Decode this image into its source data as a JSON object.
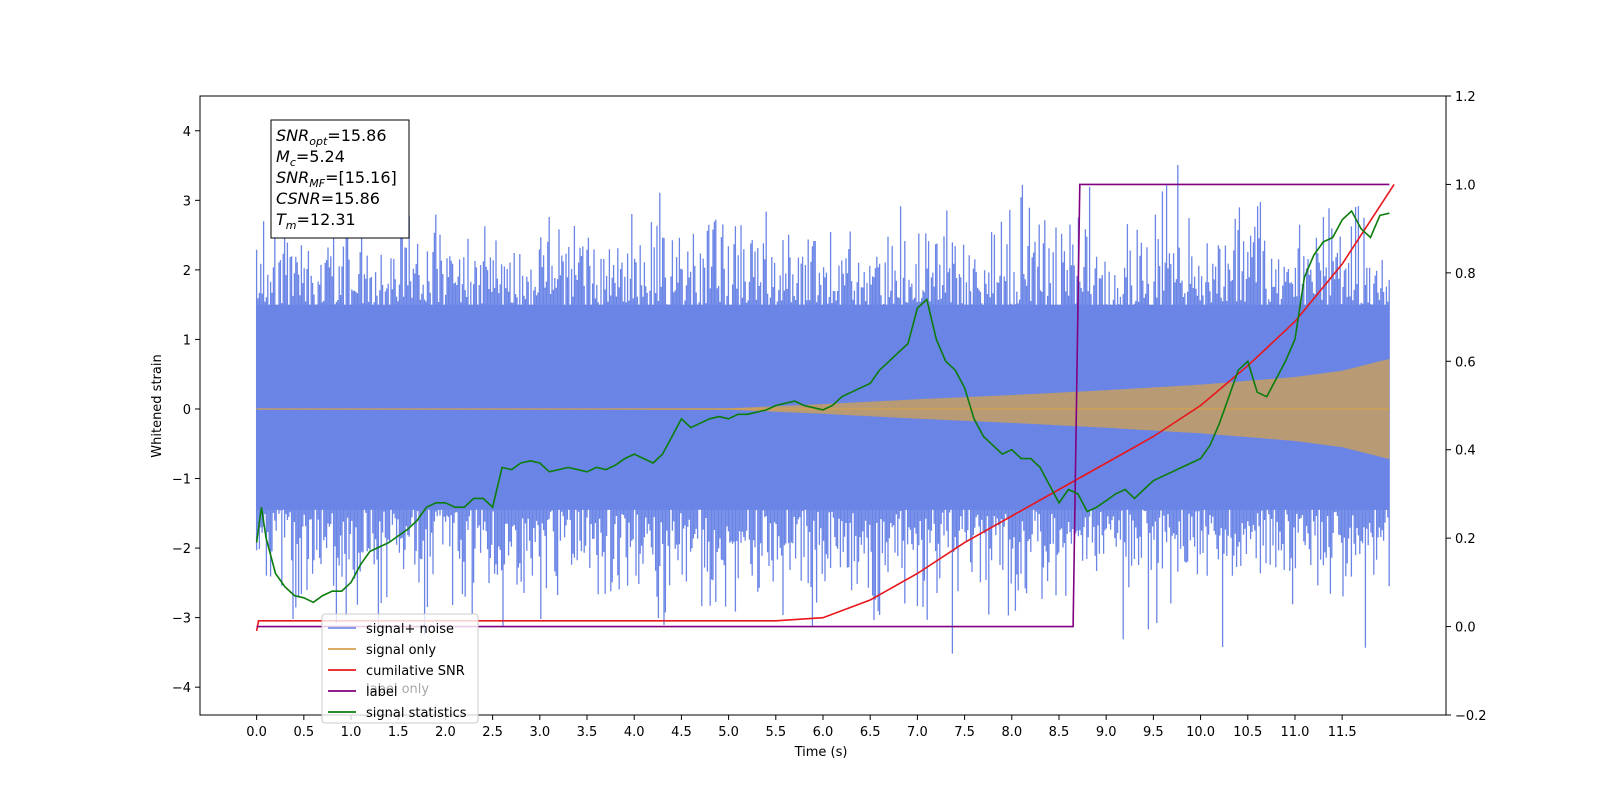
{
  "chart_data": {
    "type": "line",
    "xlabel": "Time (s)",
    "ylabel": "Whitened strain",
    "xlim": [
      -0.6,
      12.6
    ],
    "ylim": [
      -4.4,
      4.5
    ],
    "y2lim": [
      -0.2,
      1.2
    ],
    "xticks": [
      "0.0",
      "0.5",
      "1.0",
      "1.5",
      "2.0",
      "2.5",
      "3.0",
      "3.5",
      "4.0",
      "4.5",
      "5.0",
      "5.5",
      "6.0",
      "6.5",
      "7.0",
      "7.5",
      "8.0",
      "8.5",
      "9.0",
      "9.5",
      "10.0",
      "10.5",
      "11.0",
      "11.5"
    ],
    "yticks": [
      "−4",
      "−3",
      "−2",
      "−1",
      "0",
      "1",
      "2",
      "3",
      "4"
    ],
    "y2ticks": [
      "−0.2",
      "0.0",
      "0.2",
      "0.4",
      "0.6",
      "0.8",
      "1.0",
      "1.2"
    ],
    "grid": false,
    "legend_position": "lower-left",
    "colors": {
      "noise": "#6a85e6",
      "signal": "#d4a14f",
      "snr": "#e8161b",
      "label": "#800080",
      "stat": "#0b7d0b",
      "label_only": "#b0a0b0"
    },
    "legend": [
      {
        "key": "noise",
        "label": "signal+ noise"
      },
      {
        "key": "signal",
        "label": "signal only"
      },
      {
        "key": "snr",
        "label": "cumilative SNR"
      },
      {
        "key": "label",
        "label": "label"
      },
      {
        "key": "stat",
        "label": "signal statistics"
      }
    ],
    "hidden_legend_label": "label only",
    "info_box": [
      {
        "base": "SNR",
        "sub": "opt",
        "value": "=15.86"
      },
      {
        "base": "M",
        "sub": "c",
        "value": "=5.24"
      },
      {
        "base": "SNR",
        "sub": "MF",
        "value": "=[15.16]"
      },
      {
        "base": "CSNR",
        "sub": "",
        "value": "=15.86"
      },
      {
        "base": "T",
        "sub": "m",
        "value": "=12.31"
      }
    ],
    "noise_range": [
      0.0,
      12.0
    ],
    "signal_envelope": {
      "x": [
        0.0,
        5.0,
        6.0,
        7.0,
        8.0,
        9.0,
        10.0,
        11.0,
        11.5,
        12.0
      ],
      "amp": [
        0.0,
        0.01,
        0.07,
        0.14,
        0.2,
        0.27,
        0.35,
        0.46,
        0.55,
        0.72
      ]
    },
    "cumulative_snr": {
      "x": [
        0.0,
        0.02,
        5.5,
        6.0,
        6.5,
        7.0,
        7.5,
        8.0,
        8.5,
        9.0,
        9.5,
        10.0,
        10.5,
        11.0,
        11.5,
        12.05
      ],
      "y": [
        -0.01,
        0.013,
        0.013,
        0.02,
        0.06,
        0.12,
        0.19,
        0.25,
        0.31,
        0.37,
        0.43,
        0.5,
        0.59,
        0.69,
        0.82,
        1.0
      ]
    },
    "label_series": {
      "x": [
        0.0,
        8.65,
        8.72,
        12.0
      ],
      "y": [
        0.0,
        0.0,
        1.0,
        1.0
      ]
    },
    "signal_statistics": {
      "x": [
        0.0,
        0.05,
        0.1,
        0.2,
        0.3,
        0.4,
        0.5,
        0.6,
        0.7,
        0.8,
        0.9,
        1.0,
        1.1,
        1.2,
        1.3,
        1.4,
        1.5,
        1.6,
        1.7,
        1.8,
        1.9,
        2.0,
        2.1,
        2.2,
        2.3,
        2.4,
        2.5,
        2.6,
        2.7,
        2.8,
        2.9,
        3.0,
        3.1,
        3.2,
        3.3,
        3.4,
        3.5,
        3.6,
        3.7,
        3.8,
        3.9,
        4.0,
        4.1,
        4.2,
        4.3,
        4.4,
        4.5,
        4.6,
        4.7,
        4.8,
        4.9,
        5.0,
        5.1,
        5.2,
        5.3,
        5.4,
        5.5,
        5.6,
        5.7,
        5.8,
        5.9,
        6.0,
        6.1,
        6.2,
        6.3,
        6.4,
        6.5,
        6.6,
        6.7,
        6.8,
        6.9,
        7.0,
        7.1,
        7.2,
        7.3,
        7.4,
        7.5,
        7.6,
        7.7,
        7.8,
        7.9,
        8.0,
        8.1,
        8.2,
        8.3,
        8.4,
        8.5,
        8.6,
        8.7,
        8.8,
        8.9,
        9.0,
        9.1,
        9.2,
        9.3,
        9.4,
        9.5,
        9.6,
        9.7,
        9.8,
        9.9,
        10.0,
        10.1,
        10.2,
        10.3,
        10.4,
        10.5,
        10.6,
        10.7,
        10.8,
        10.9,
        11.0,
        11.1,
        11.2,
        11.3,
        11.4,
        11.5,
        11.6,
        11.7,
        11.8,
        11.9,
        12.0
      ],
      "y": [
        0.19,
        0.27,
        0.2,
        0.12,
        0.09,
        0.07,
        0.065,
        0.055,
        0.07,
        0.08,
        0.08,
        0.1,
        0.14,
        0.17,
        0.18,
        0.19,
        0.205,
        0.22,
        0.24,
        0.27,
        0.28,
        0.28,
        0.27,
        0.27,
        0.29,
        0.29,
        0.27,
        0.36,
        0.355,
        0.37,
        0.375,
        0.37,
        0.35,
        0.355,
        0.36,
        0.355,
        0.35,
        0.36,
        0.355,
        0.365,
        0.38,
        0.39,
        0.38,
        0.37,
        0.39,
        0.43,
        0.47,
        0.45,
        0.46,
        0.47,
        0.475,
        0.47,
        0.48,
        0.48,
        0.485,
        0.49,
        0.5,
        0.505,
        0.51,
        0.5,
        0.495,
        0.49,
        0.5,
        0.52,
        0.53,
        0.54,
        0.55,
        0.58,
        0.6,
        0.62,
        0.64,
        0.72,
        0.74,
        0.65,
        0.6,
        0.58,
        0.54,
        0.47,
        0.43,
        0.41,
        0.39,
        0.4,
        0.38,
        0.38,
        0.36,
        0.32,
        0.28,
        0.31,
        0.3,
        0.26,
        0.27,
        0.285,
        0.3,
        0.31,
        0.29,
        0.31,
        0.33,
        0.34,
        0.35,
        0.36,
        0.37,
        0.38,
        0.41,
        0.46,
        0.52,
        0.58,
        0.6,
        0.53,
        0.52,
        0.56,
        0.6,
        0.65,
        0.79,
        0.84,
        0.87,
        0.88,
        0.92,
        0.94,
        0.9,
        0.88,
        0.93,
        0.935
      ]
    }
  }
}
